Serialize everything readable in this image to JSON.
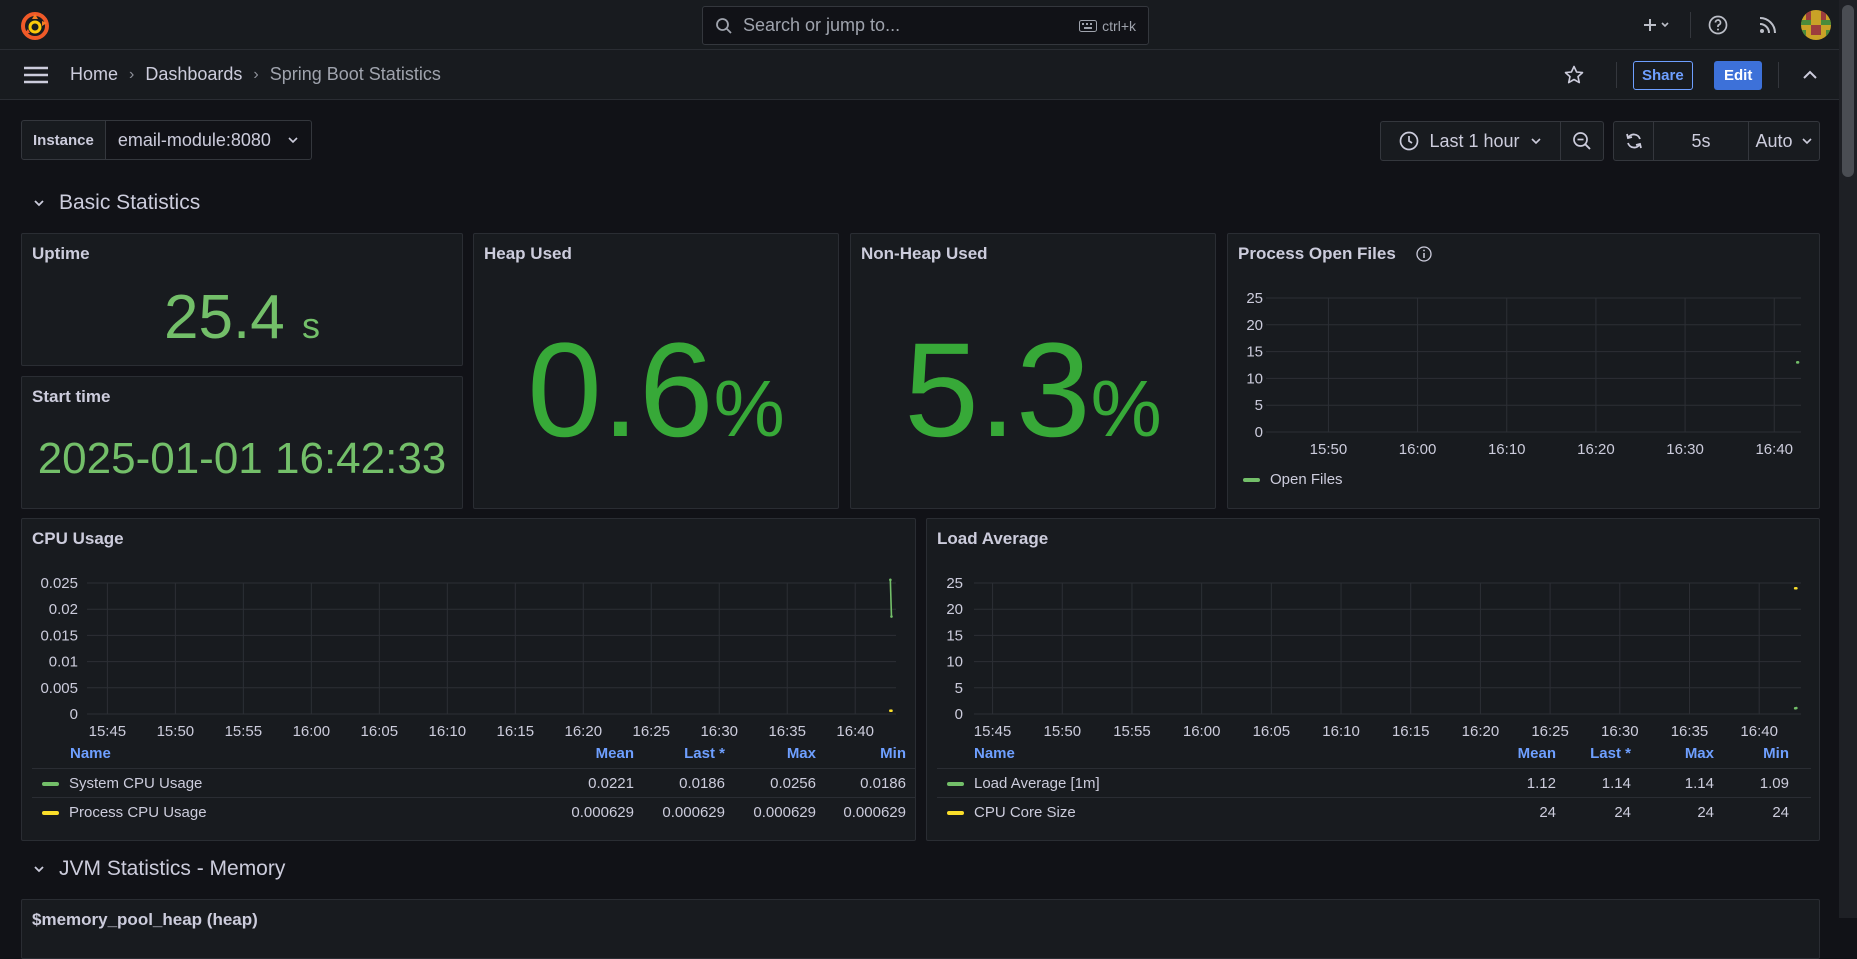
{
  "topbar": {
    "search_placeholder": "Search or jump to...",
    "search_shortcut": "ctrl+k"
  },
  "breadcrumb": [
    "Home",
    "Dashboards",
    "Spring Boot Statistics"
  ],
  "actions": {
    "share": "Share",
    "edit": "Edit"
  },
  "variables": {
    "instance_label": "Instance",
    "instance_value": "email-module:8080"
  },
  "time_picker": {
    "range": "Last 1 hour",
    "refresh": "5s",
    "auto": "Auto"
  },
  "rows": {
    "basic": "Basic Statistics",
    "jvm_memory": "JVM Statistics - Memory"
  },
  "next_panel_title": "$memory_pool_heap (heap)",
  "panels": {
    "uptime": {
      "title": "Uptime",
      "value": "25.4",
      "unit": "s"
    },
    "start_time": {
      "title": "Start time",
      "value": "2025-01-01 16:42:33"
    },
    "heap": {
      "title": "Heap Used",
      "value": "0.6",
      "unit": "%"
    },
    "nonheap": {
      "title": "Non-Heap Used",
      "value": "5.3",
      "unit": "%"
    },
    "open_files": {
      "title": "Process Open Files",
      "legend": "Open Files"
    },
    "cpu": {
      "title": "CPU Usage",
      "columns": [
        "Name",
        "Mean",
        "Last *",
        "Max",
        "Min"
      ],
      "rows": [
        {
          "name": "System CPU Usage",
          "color": "#73bf69",
          "mean": "0.0221",
          "last": "0.0186",
          "max": "0.0256",
          "min": "0.0186"
        },
        {
          "name": "Process CPU Usage",
          "color": "#fade2a",
          "mean": "0.000629",
          "last": "0.000629",
          "max": "0.000629",
          "min": "0.000629"
        }
      ]
    },
    "load": {
      "title": "Load Average",
      "columns": [
        "Name",
        "Mean",
        "Last *",
        "Max",
        "Min"
      ],
      "rows": [
        {
          "name": "Load Average [1m]",
          "color": "#73bf69",
          "mean": "1.12",
          "last": "1.14",
          "max": "1.14",
          "min": "1.09"
        },
        {
          "name": "CPU Core Size",
          "color": "#fade2a",
          "mean": "24",
          "last": "24",
          "max": "24",
          "min": "24"
        }
      ]
    }
  },
  "chart_data": [
    {
      "type": "line",
      "title": "Process Open Files",
      "ylim": [
        0,
        25
      ],
      "yticks": [
        "25",
        "20",
        "15",
        "10",
        "5",
        "0"
      ],
      "xticks": [
        "15:50",
        "16:00",
        "16:10",
        "16:20",
        "16:30",
        "16:40"
      ],
      "series": [
        {
          "name": "Open Files",
          "color": "#73bf69",
          "x": [
            "16:42:35",
            "16:42:40"
          ],
          "y": [
            13,
            13
          ]
        }
      ]
    },
    {
      "type": "line",
      "title": "CPU Usage",
      "ylim": [
        0,
        0.025
      ],
      "yticks": [
        "0.025",
        "0.02",
        "0.015",
        "0.01",
        "0.005",
        "0"
      ],
      "xticks": [
        "15:45",
        "15:50",
        "15:55",
        "16:00",
        "16:05",
        "16:10",
        "16:15",
        "16:20",
        "16:25",
        "16:30",
        "16:35",
        "16:40"
      ],
      "series": [
        {
          "name": "System CPU Usage",
          "color": "#73bf69",
          "x": [
            "16:42:35",
            "16:42:40"
          ],
          "y": [
            0.0256,
            0.0186
          ]
        },
        {
          "name": "Process CPU Usage",
          "color": "#fade2a",
          "x": [
            "16:42:35",
            "16:42:40"
          ],
          "y": [
            0.000629,
            0.000629
          ]
        }
      ]
    },
    {
      "type": "line",
      "title": "Load Average",
      "ylim": [
        0,
        25
      ],
      "yticks": [
        "25",
        "20",
        "15",
        "10",
        "5",
        "0"
      ],
      "xticks": [
        "15:45",
        "15:50",
        "15:55",
        "16:00",
        "16:05",
        "16:10",
        "16:15",
        "16:20",
        "16:25",
        "16:30",
        "16:35",
        "16:40"
      ],
      "series": [
        {
          "name": "Load Average [1m]",
          "color": "#73bf69",
          "x": [
            "16:42:35",
            "16:42:40"
          ],
          "y": [
            1.09,
            1.14
          ]
        },
        {
          "name": "CPU Core Size",
          "color": "#fade2a",
          "x": [
            "16:42:35",
            "16:42:40"
          ],
          "y": [
            24,
            24
          ]
        }
      ]
    }
  ]
}
